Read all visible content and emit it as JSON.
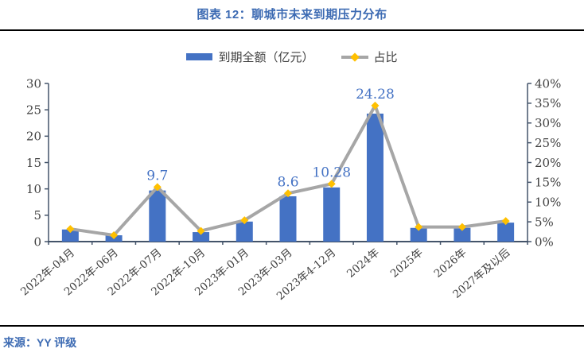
{
  "figure": {
    "title": "图表 12：聊城市未来到期压力分布",
    "source": "来源：YY 评级"
  },
  "legend": {
    "bar_label": "到期全额（亿元）",
    "line_label": "占比"
  },
  "colors": {
    "bar": "#4472C4",
    "line": "#A6A6A6",
    "marker": "#FFC000",
    "title": "#3D6BB3",
    "source": "#3D6BB3",
    "data_label": "#4472C4",
    "axis_line": "#44546A",
    "axis_text": "#3F3F3F",
    "rule": "#000000"
  },
  "chart_data": {
    "type": "bar",
    "title": "图表 12：聊城市未来到期压力分布",
    "categories": [
      "2022年-04月",
      "2022年-06月",
      "2022年-07月",
      "2022年-10月",
      "2023年-01月",
      "2023年-03月",
      "2023年4-12月",
      "2024年",
      "2025年",
      "2026年",
      "2027年及以后"
    ],
    "series": [
      {
        "name": "到期全额（亿元）",
        "type": "bar",
        "axis": "left",
        "values": [
          2.3,
          1.2,
          9.7,
          1.8,
          3.8,
          8.6,
          10.28,
          24.28,
          2.6,
          2.6,
          3.6
        ]
      },
      {
        "name": "占比",
        "type": "line",
        "axis": "right",
        "unit": "%",
        "values": [
          3.2,
          1.6,
          13.8,
          2.7,
          5.4,
          12.2,
          14.6,
          34.4,
          3.7,
          3.7,
          5.2
        ]
      }
    ],
    "point_labels": [
      "",
      "",
      "9.7",
      "",
      "",
      "8.6",
      "10.28",
      "24.28",
      "",
      "",
      ""
    ],
    "left_axis": {
      "min": 0,
      "max": 30,
      "step": 5,
      "tick_labels": [
        "0",
        "5",
        "10",
        "15",
        "20",
        "25",
        "30"
      ]
    },
    "right_axis": {
      "min": 0,
      "max": 40,
      "step": 5,
      "tick_labels": [
        "0%",
        "5%",
        "10%",
        "15%",
        "20%",
        "25%",
        "30%",
        "35%",
        "40%"
      ]
    },
    "grid": false,
    "legend_position": "top",
    "xlabel": "",
    "ylabel": ""
  }
}
